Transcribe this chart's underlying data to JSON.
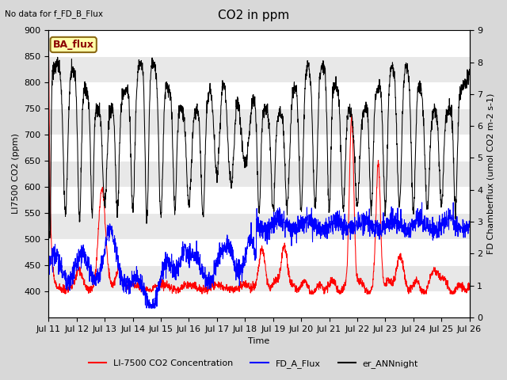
{
  "title": "CO2 in ppm",
  "top_left_text": "No data for f_FD_B_Flux",
  "ba_flux_label": "BA_flux",
  "ylabel_left": "LI7500 CO2 (ppm)",
  "ylabel_right": "FD Chamberflux (umol CO2 m-2 s-1)",
  "xlabel": "Time",
  "ylim_left": [
    350,
    900
  ],
  "ylim_right": [
    0.0,
    9.0
  ],
  "yticks_left": [
    400,
    450,
    500,
    550,
    600,
    650,
    700,
    750,
    800,
    850,
    900
  ],
  "yticks_right": [
    0.0,
    1.0,
    2.0,
    3.0,
    4.0,
    5.0,
    6.0,
    7.0,
    8.0,
    9.0
  ],
  "xtick_labels": [
    "Jul 11",
    "Jul 12",
    "Jul 13",
    "Jul 14",
    "Jul 15",
    "Jul 16",
    "Jul 17",
    "Jul 18",
    "Jul 19",
    "Jul 20",
    "Jul 21",
    "Jul 22",
    "Jul 23",
    "Jul 24",
    "Jul 25",
    "Jul 26"
  ],
  "legend_entries": [
    "LI-7500 CO2 Concentration",
    "FD_A_Flux",
    "er_ANNnight"
  ],
  "fig_bg_color": "#d8d8d8",
  "plot_bg_color": "#ffffff",
  "band_color": "#e8e8e8",
  "ba_flux_bg": "#ffffaa",
  "ba_flux_border": "#8b6914",
  "ba_flux_text_color": "#8b0000",
  "title_fontsize": 11,
  "axis_label_fontsize": 8,
  "tick_fontsize": 8
}
